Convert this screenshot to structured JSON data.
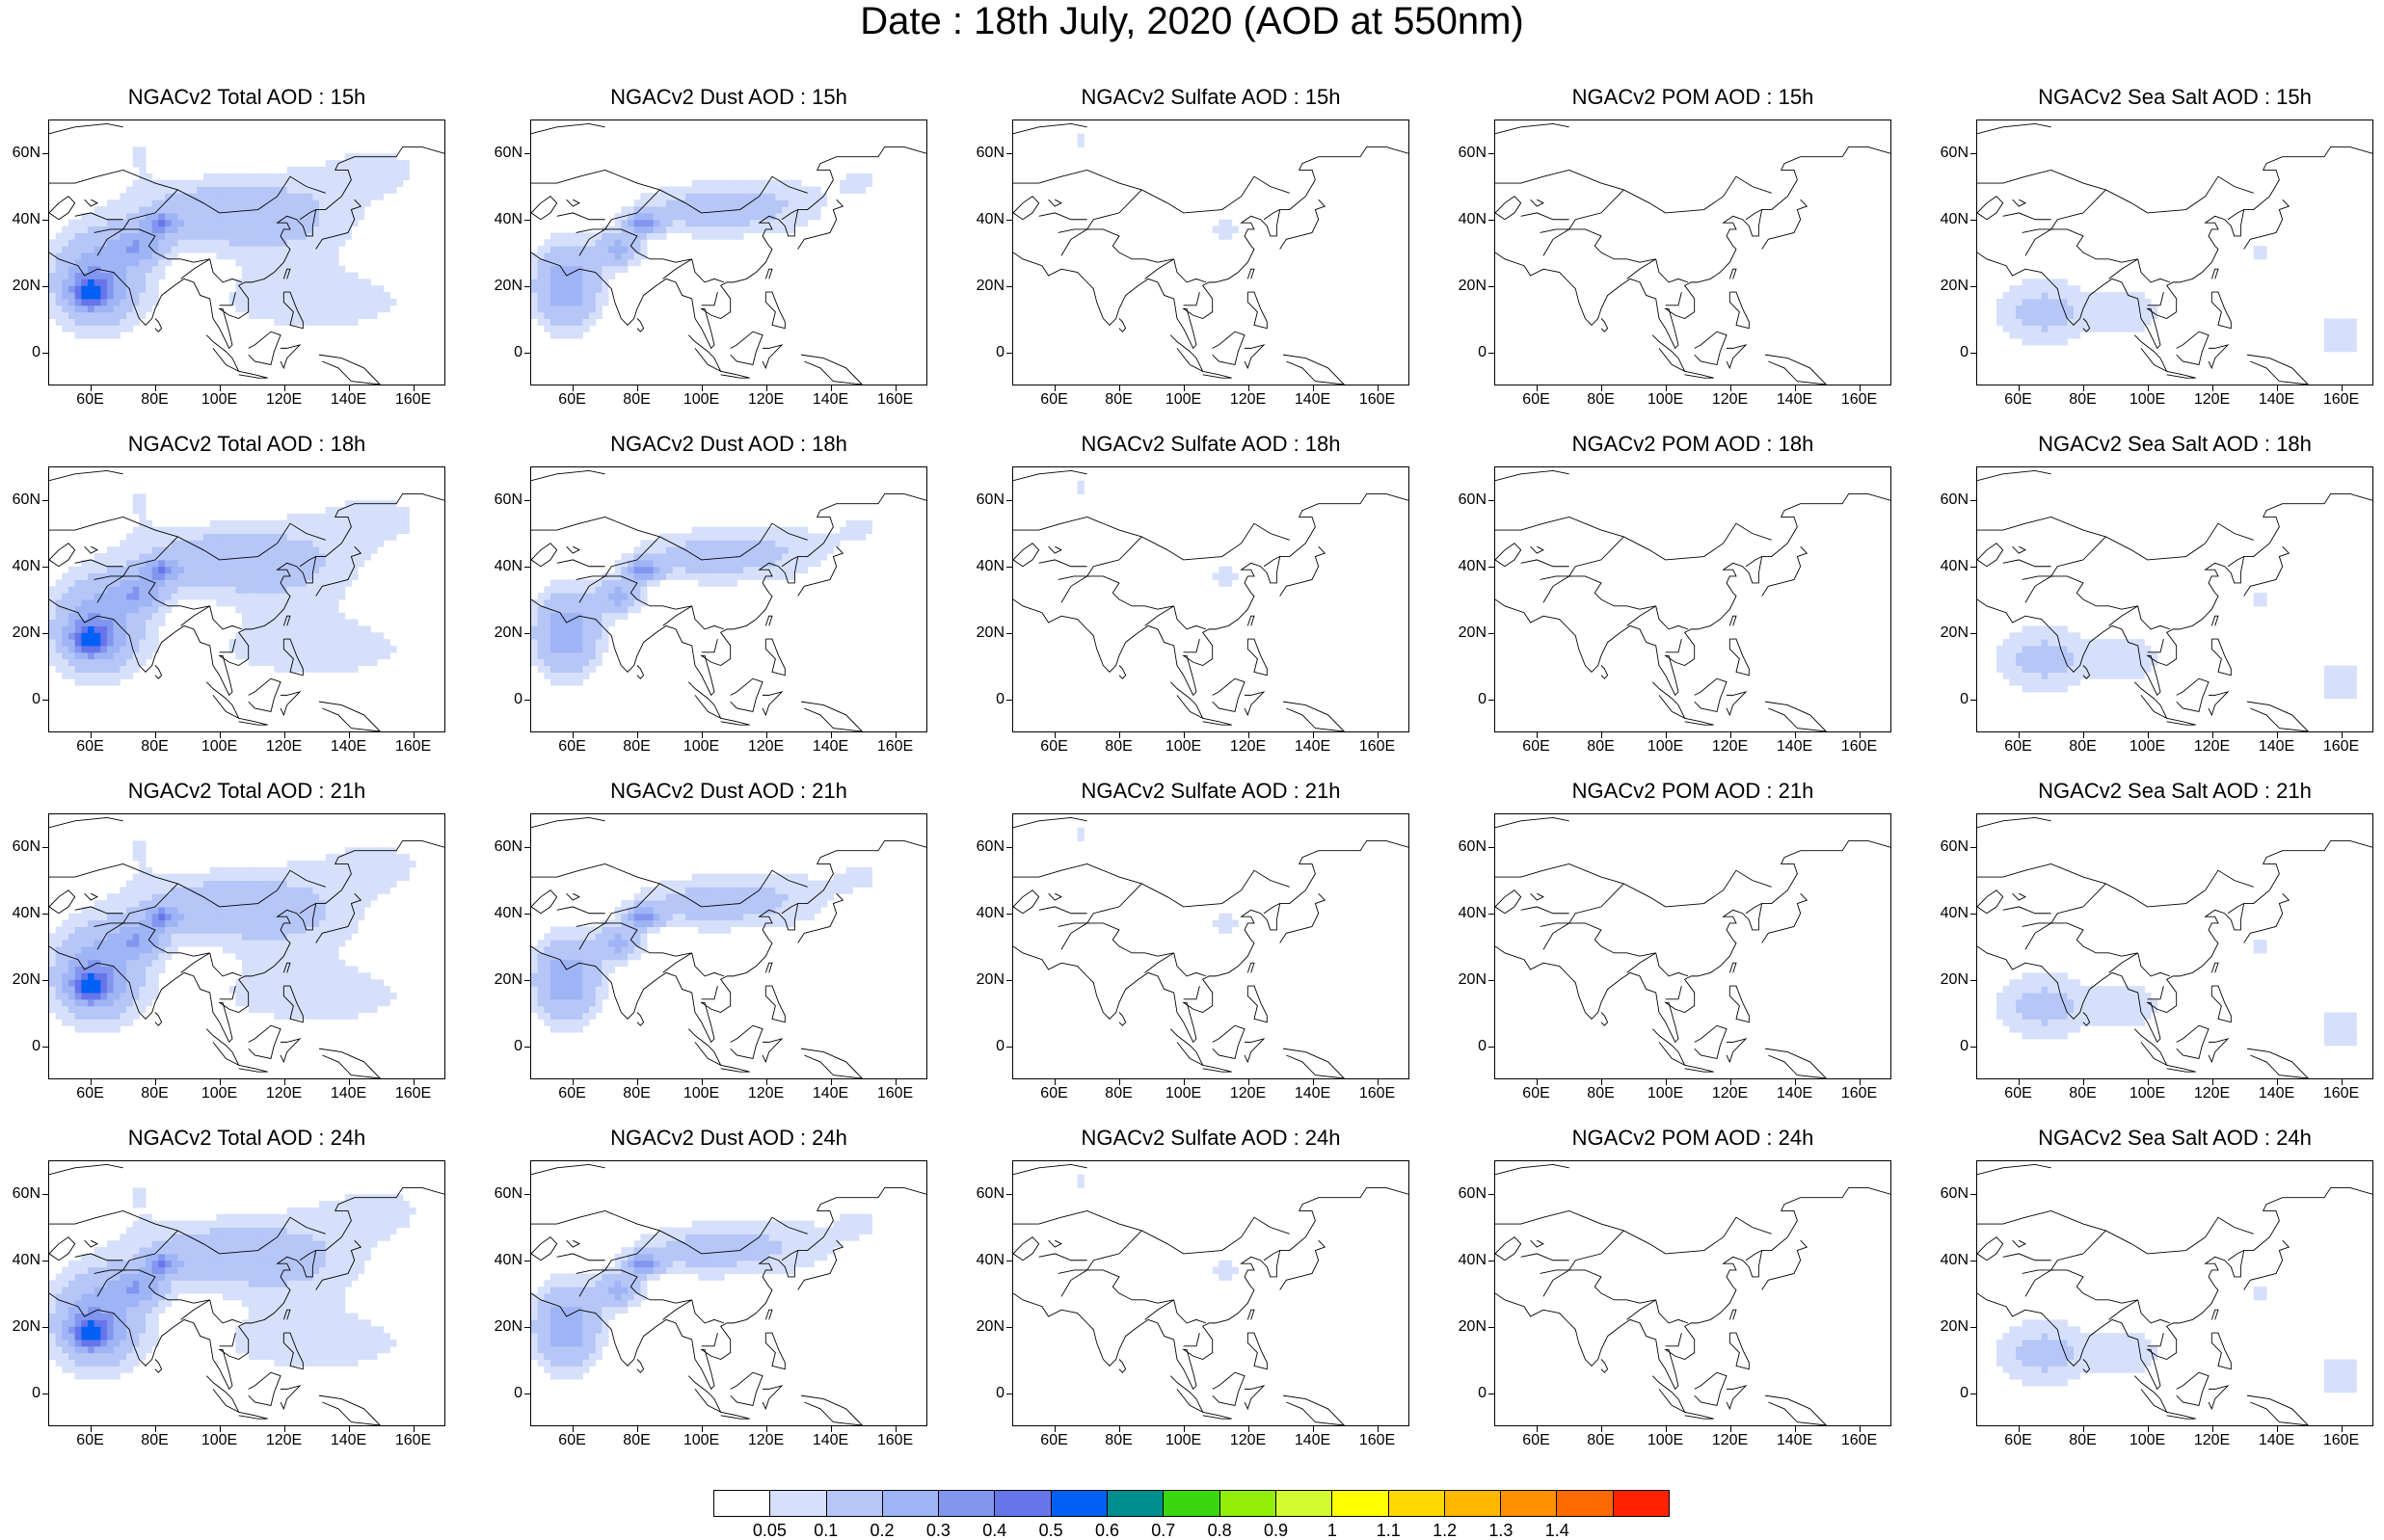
{
  "title": "Date : 18th July, 2020 (AOD at 550nm)",
  "species": [
    {
      "key": "total",
      "name": "Total",
      "peak": 0.62,
      "pattern": "total"
    },
    {
      "key": "dust",
      "name": "Dust",
      "peak": 0.55,
      "pattern": "dust"
    },
    {
      "key": "sulfate",
      "name": "Sulfate",
      "peak": 0.12,
      "pattern": "sulfate"
    },
    {
      "key": "pom",
      "name": "POM",
      "peak": 0.06,
      "pattern": "pom"
    },
    {
      "key": "seasalt",
      "name": "Sea Salt",
      "peak": 0.22,
      "pattern": "seasalt"
    }
  ],
  "panel_titles": [
    [
      "NGACv2 Total AOD : 15h",
      "NGACv2 Dust AOD : 15h",
      "NGACv2 Sulfate AOD : 15h",
      "NGACv2 POM AOD : 15h",
      "NGACv2 Sea Salt AOD : 15h"
    ],
    [
      "NGACv2 Total AOD : 18h",
      "NGACv2 Dust AOD : 18h",
      "NGACv2 Sulfate AOD : 18h",
      "NGACv2 POM AOD : 18h",
      "NGACv2 Sea Salt AOD : 18h"
    ],
    [
      "NGACv2 Total AOD : 21h",
      "NGACv2 Dust AOD : 21h",
      "NGACv2 Sulfate AOD : 21h",
      "NGACv2 POM AOD : 21h",
      "NGACv2 Sea Salt AOD : 21h"
    ],
    [
      "NGACv2 Total AOD : 24h",
      "NGACv2 Dust AOD : 24h",
      "NGACv2 Sulfate AOD : 24h",
      "NGACv2 POM AOD : 24h",
      "NGACv2 Sea Salt  AOD : 24h"
    ]
  ],
  "hours": [
    "15h",
    "18h",
    "21h",
    "24h"
  ],
  "map_extent": {
    "lon": [
      47,
      170
    ],
    "lat": [
      -10,
      70
    ]
  },
  "lat_ticks": [
    {
      "value": 60,
      "label": "60N"
    },
    {
      "value": 40,
      "label": "40N"
    },
    {
      "value": 20,
      "label": "20N"
    },
    {
      "value": 0,
      "label": "0"
    }
  ],
  "lon_ticks": [
    {
      "value": 60,
      "label": "60E"
    },
    {
      "value": 80,
      "label": "80E"
    },
    {
      "value": 100,
      "label": "100E"
    },
    {
      "value": 120,
      "label": "120E"
    },
    {
      "value": 140,
      "label": "140E"
    },
    {
      "value": 160,
      "label": "160E"
    }
  ],
  "colorbar": {
    "colors": [
      "#ffffff",
      "#d6e0fb",
      "#b5c6f7",
      "#9fb4f5",
      "#8296f0",
      "#6775ea",
      "#0060f5",
      "#008d8d",
      "#3ad60f",
      "#93ee0a",
      "#d3fb30",
      "#ffff00",
      "#ffd800",
      "#ffb800",
      "#ff9000",
      "#ff6a00",
      "#ff2200"
    ],
    "labels": [
      "0.05",
      "0.1",
      "0.2",
      "0.3",
      "0.4",
      "0.5",
      "0.6",
      "0.7",
      "0.8",
      "0.9",
      "1",
      "1.1",
      "1.2",
      "1.3",
      "1.4"
    ]
  }
}
